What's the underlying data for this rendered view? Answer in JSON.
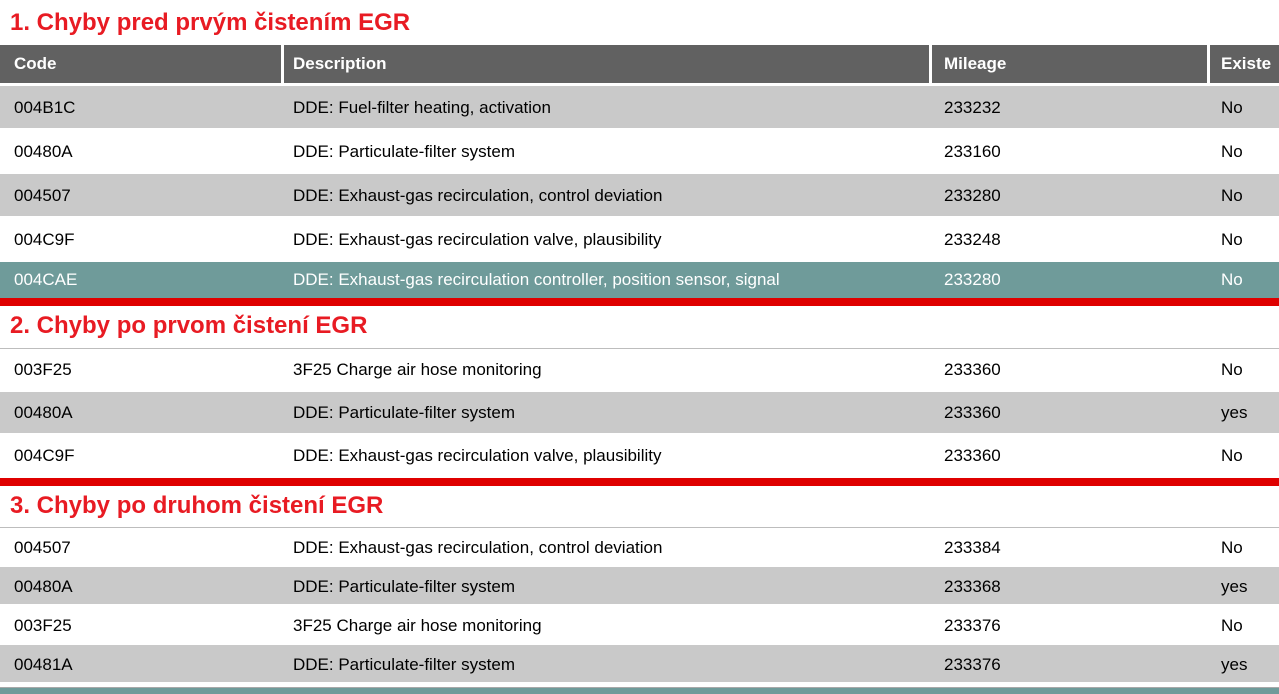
{
  "colors": {
    "heading_red": "#e81b23",
    "bar_red": "#df0000",
    "header_gray": "#616161",
    "row_gray": "#c9c9c9",
    "highlight_teal": "#6f9b9a",
    "line_gray": "#bdbdbd"
  },
  "columns": {
    "code": "Code",
    "description": "Description",
    "mileage": "Mileage",
    "existent": "Existe"
  },
  "sections": [
    {
      "title": "1. Chyby pred prvým čistením EGR",
      "rows": [
        {
          "code": "004B1C",
          "description": "DDE: Fuel-filter heating, activation",
          "mileage": "233232",
          "existent": "No",
          "variant": "gray"
        },
        {
          "code": "00480A",
          "description": "DDE: Particulate-filter system",
          "mileage": "233160",
          "existent": "No",
          "variant": "white"
        },
        {
          "code": "004507",
          "description": "DDE: Exhaust-gas recirculation, control deviation",
          "mileage": "233280",
          "existent": "No",
          "variant": "gray"
        },
        {
          "code": "004C9F",
          "description": "DDE: Exhaust-gas recirculation valve, plausibility",
          "mileage": "233248",
          "existent": "No",
          "variant": "white"
        },
        {
          "code": "004CAE",
          "description": "DDE: Exhaust-gas recirculation controller, position sensor, signal",
          "mileage": "233280",
          "existent": "No",
          "variant": "selected"
        }
      ]
    },
    {
      "title": "2. Chyby po prvom čistení EGR",
      "rows": [
        {
          "code": "003F25",
          "description": "3F25 Charge air hose monitoring",
          "mileage": "233360",
          "existent": "No",
          "variant": "white"
        },
        {
          "code": "00480A",
          "description": "DDE: Particulate-filter system",
          "mileage": "233360",
          "existent": "yes",
          "variant": "gray"
        },
        {
          "code": "004C9F",
          "description": "DDE: Exhaust-gas recirculation valve, plausibility",
          "mileage": "233360",
          "existent": "No",
          "variant": "white"
        }
      ]
    },
    {
      "title": "3. Chyby po druhom čistení EGR",
      "rows": [
        {
          "code": "004507",
          "description": "DDE: Exhaust-gas recirculation, control deviation",
          "mileage": "233384",
          "existent": "No",
          "variant": "white"
        },
        {
          "code": "00480A",
          "description": "DDE: Particulate-filter system",
          "mileage": "233368",
          "existent": "yes",
          "variant": "gray"
        },
        {
          "code": "003F25",
          "description": "3F25 Charge air hose monitoring",
          "mileage": "233376",
          "existent": "No",
          "variant": "white"
        },
        {
          "code": "00481A",
          "description": "DDE: Particulate-filter system",
          "mileage": "233376",
          "existent": "yes",
          "variant": "gray"
        }
      ]
    }
  ]
}
